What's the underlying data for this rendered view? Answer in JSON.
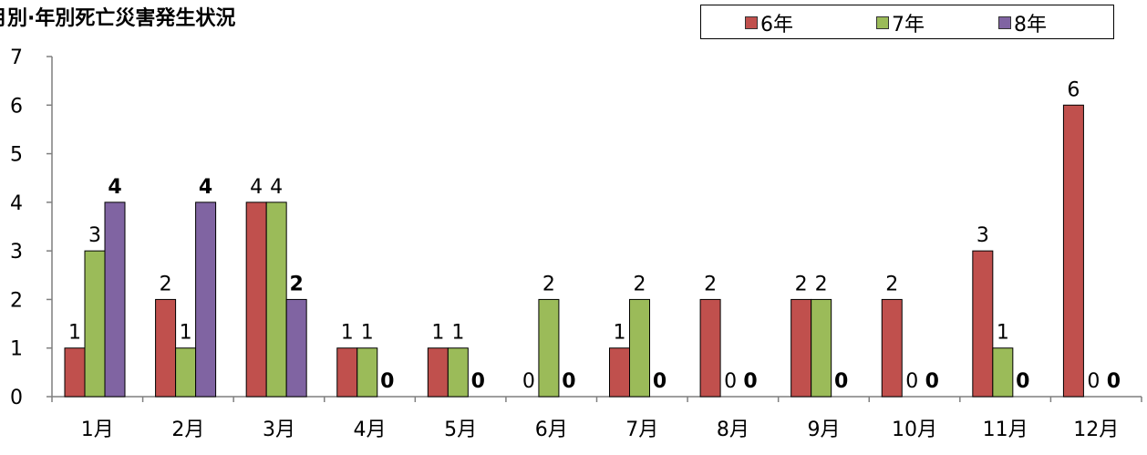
{
  "chart_data": {
    "type": "bar",
    "title": "月別·年別死亡災害発生状況",
    "xlabel": "",
    "ylabel": "",
    "ylim": [
      0,
      7
    ],
    "yticks": [
      "0",
      "1",
      "2",
      "3",
      "4",
      "5",
      "6",
      "7"
    ],
    "categories": [
      "1月",
      "2月",
      "3月",
      "4月",
      "5月",
      "6月",
      "7月",
      "8月",
      "9月",
      "10月",
      "11月",
      "12月"
    ],
    "series": [
      {
        "name": "6年",
        "color": "#C0504D",
        "values": [
          1,
          2,
          4,
          1,
          1,
          0,
          1,
          2,
          2,
          2,
          3,
          6
        ],
        "labels": [
          "1",
          "2",
          "4",
          "1",
          "1",
          "0",
          "1",
          "2",
          "2",
          "2",
          "3",
          "6"
        ],
        "bold_labels": false
      },
      {
        "name": "7年",
        "color": "#9BBB59",
        "values": [
          3,
          1,
          4,
          1,
          1,
          2,
          2,
          0,
          2,
          0,
          1,
          0
        ],
        "labels": [
          "3",
          "1",
          "4",
          "1",
          "1",
          "2",
          "2",
          "0",
          "2",
          "0",
          "1",
          "0"
        ],
        "bold_labels": false
      },
      {
        "name": "8年",
        "color": "#8064A2",
        "values": [
          4,
          4,
          2,
          0,
          0,
          0,
          0,
          0,
          0,
          0,
          0,
          0
        ],
        "labels": [
          "4",
          "4",
          "2",
          "0",
          "0",
          "0",
          "0",
          "0",
          "0",
          "0",
          "0",
          "0"
        ],
        "bold_labels": true
      }
    ],
    "legend_position": "top-right",
    "grid": false
  }
}
